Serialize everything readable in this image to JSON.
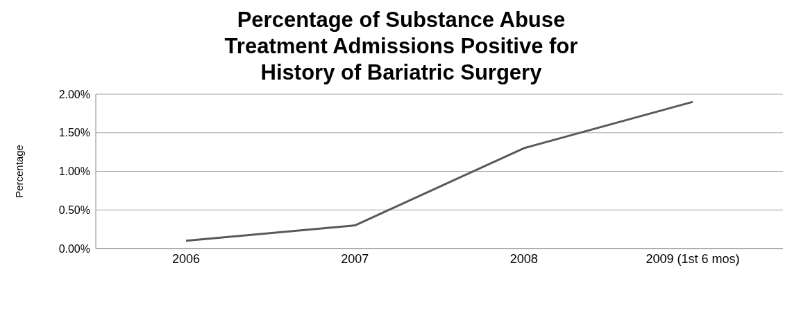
{
  "chart_data": {
    "type": "line",
    "title": "Percentage of Substance Abuse Treatment Admissions Positive for History of Bariatric Surgery",
    "ylabel": "Percentage",
    "categories": [
      "2006",
      "2007",
      "2008",
      "2009 (1st 6 mos)"
    ],
    "series": [
      {
        "color": "#595959",
        "values": [
          0.1,
          0.3,
          1.3,
          1.9
        ]
      }
    ],
    "ylim": [
      0,
      2
    ],
    "yticks": [
      {
        "value": 0,
        "label": "0.00%"
      },
      {
        "value": 0.5,
        "label": "0.50%"
      },
      {
        "value": 1,
        "label": "1.00%"
      },
      {
        "value": 1.5,
        "label": "1.50%"
      },
      {
        "value": 2,
        "label": "2.00%"
      }
    ],
    "grid": "y",
    "legend": false,
    "marker": "none",
    "line_style": "solid"
  }
}
